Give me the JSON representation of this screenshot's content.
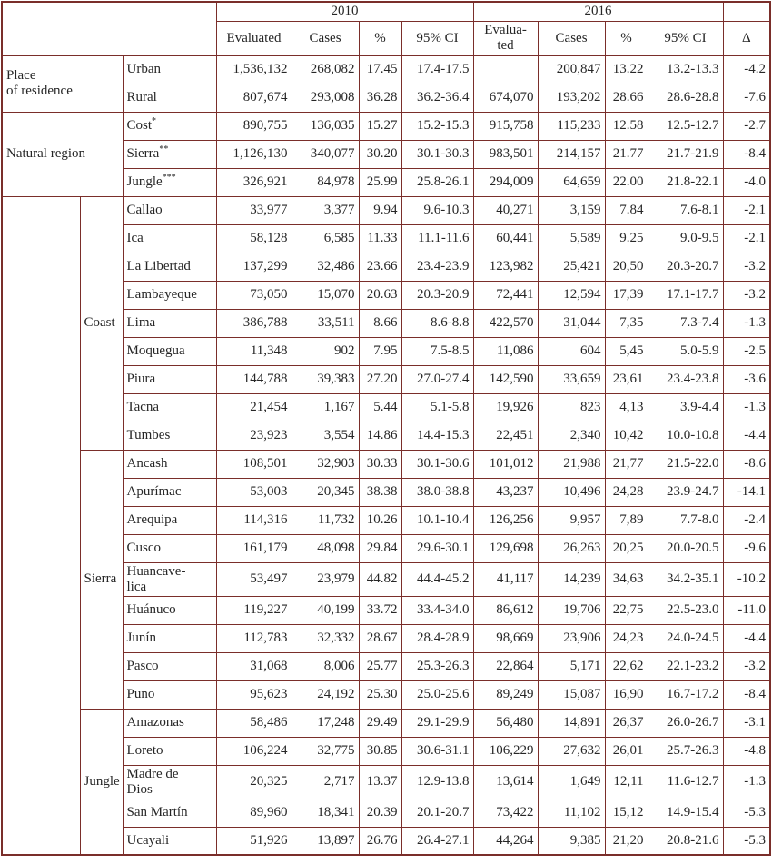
{
  "table": {
    "header": {
      "year_2010": "2010",
      "year_2016": "2016",
      "delta": "Δ",
      "subcols_2010": [
        "Evaluated",
        "Cases",
        "%",
        "95% CI"
      ],
      "subcols_2016": [
        "Evalua-\nted",
        "Cases",
        "%",
        "95% CI"
      ]
    },
    "border_color": "#7a2e2a",
    "sections": [
      {
        "label": "Place\nof residence",
        "rows": [
          {
            "name": "Urban",
            "values": [
              "1,536,132",
              "268,082",
              "17.45",
              "17.4-17.5",
              "",
              "200,847",
              "13.22",
              "13.2-13.3",
              "-4.2"
            ]
          },
          {
            "name": "Rural",
            "values": [
              "807,674",
              "293,008",
              "36.28",
              "36.2-36.4",
              "674,070",
              "193,202",
              "28.66",
              "28.6-28.8",
              "-7.6"
            ]
          }
        ]
      },
      {
        "label": "Natural region",
        "rows": [
          {
            "name": "Cost",
            "sup": "*",
            "values": [
              "890,755",
              "136,035",
              "15.27",
              "15.2-15.3",
              "915,758",
              "115,233",
              "12.58",
              "12.5-12.7",
              "-2.7"
            ]
          },
          {
            "name": "Sierra",
            "sup": "**",
            "values": [
              "1,126,130",
              "340,077",
              "30.20",
              "30.1-30.3",
              "983,501",
              "214,157",
              "21.77",
              "21.7-21.9",
              "-8.4"
            ]
          },
          {
            "name": "Jungle",
            "sup": "***",
            "values": [
              "326,921",
              "84,978",
              "25.99",
              "25.8-26.1",
              "294,009",
              "64,659",
              "22.00",
              "21.8-22.1",
              "-4.0"
            ]
          }
        ]
      },
      {
        "label": "",
        "groups": [
          {
            "name": "Coast",
            "rows": [
              {
                "name": "Callao",
                "values": [
                  "33,977",
                  "3,377",
                  "9.94",
                  "9.6-10.3",
                  "40,271",
                  "3,159",
                  "7.84",
                  "7.6-8.1",
                  "-2.1"
                ]
              },
              {
                "name": "Ica",
                "values": [
                  "58,128",
                  "6,585",
                  "11.33",
                  "11.1-11.6",
                  "60,441",
                  "5,589",
                  "9.25",
                  "9.0-9.5",
                  "-2.1"
                ]
              },
              {
                "name": "La Libertad",
                "values": [
                  "137,299",
                  "32,486",
                  "23.66",
                  "23.4-23.9",
                  "123,982",
                  "25,421",
                  "20,50",
                  "20.3-20.7",
                  "-3.2"
                ]
              },
              {
                "name": "Lambayeque",
                "values": [
                  "73,050",
                  "15,070",
                  "20.63",
                  "20.3-20.9",
                  "72,441",
                  "12,594",
                  "17,39",
                  "17.1-17.7",
                  "-3.2"
                ]
              },
              {
                "name": "Lima",
                "values": [
                  "386,788",
                  "33,511",
                  "8.66",
                  "8.6-8.8",
                  "422,570",
                  "31,044",
                  "7,35",
                  "7.3-7.4",
                  "-1.3"
                ]
              },
              {
                "name": "Moquegua",
                "values": [
                  "11,348",
                  "902",
                  "7.95",
                  "7.5-8.5",
                  "11,086",
                  "604",
                  "5,45",
                  "5.0-5.9",
                  "-2.5"
                ]
              },
              {
                "name": "Piura",
                "values": [
                  "144,788",
                  "39,383",
                  "27.20",
                  "27.0-27.4",
                  "142,590",
                  "33,659",
                  "23,61",
                  "23.4-23.8",
                  "-3.6"
                ]
              },
              {
                "name": "Tacna",
                "values": [
                  "21,454",
                  "1,167",
                  "5.44",
                  "5.1-5.8",
                  "19,926",
                  "823",
                  "4,13",
                  "3.9-4.4",
                  "-1.3"
                ]
              },
              {
                "name": "Tumbes",
                "values": [
                  "23,923",
                  "3,554",
                  "14.86",
                  "14.4-15.3",
                  "22,451",
                  "2,340",
                  "10,42",
                  "10.0-10.8",
                  "-4.4"
                ]
              }
            ]
          },
          {
            "name": "Sierra",
            "rows": [
              {
                "name": "Ancash",
                "values": [
                  "108,501",
                  "32,903",
                  "30.33",
                  "30.1-30.6",
                  "101,012",
                  "21,988",
                  "21,77",
                  "21.5-22.0",
                  "-8.6"
                ]
              },
              {
                "name": "Apurímac",
                "values": [
                  "53,003",
                  "20,345",
                  "38.38",
                  "38.0-38.8",
                  "43,237",
                  "10,496",
                  "24,28",
                  "23.9-24.7",
                  "-14.1"
                ]
              },
              {
                "name": "Arequipa",
                "values": [
                  "114,316",
                  "11,732",
                  "10.26",
                  "10.1-10.4",
                  "126,256",
                  "9,957",
                  "7,89",
                  "7.7-8.0",
                  "-2.4"
                ]
              },
              {
                "name": "Cusco",
                "values": [
                  "161,179",
                  "48,098",
                  "29.84",
                  "29.6-30.1",
                  "129,698",
                  "26,263",
                  "20,25",
                  "20.0-20.5",
                  "-9.6"
                ]
              },
              {
                "name": "Huancave-\nlica",
                "values": [
                  "53,497",
                  "23,979",
                  "44.82",
                  "44.4-45.2",
                  "41,117",
                  "14,239",
                  "34,63",
                  "34.2-35.1",
                  "-10.2"
                ]
              },
              {
                "name": "Huánuco",
                "values": [
                  "119,227",
                  "40,199",
                  "33.72",
                  "33.4-34.0",
                  "86,612",
                  "19,706",
                  "22,75",
                  "22.5-23.0",
                  "-11.0"
                ]
              },
              {
                "name": "Junín",
                "values": [
                  "112,783",
                  "32,332",
                  "28.67",
                  "28.4-28.9",
                  "98,669",
                  "23,906",
                  "24,23",
                  "24.0-24.5",
                  "-4.4"
                ]
              },
              {
                "name": "Pasco",
                "values": [
                  "31,068",
                  "8,006",
                  "25.77",
                  "25.3-26.3",
                  "22,864",
                  "5,171",
                  "22,62",
                  "22.1-23.2",
                  "-3.2"
                ]
              },
              {
                "name": "Puno",
                "values": [
                  "95,623",
                  "24,192",
                  "25.30",
                  "25.0-25.6",
                  "89,249",
                  "15,087",
                  "16,90",
                  "16.7-17.2",
                  "-8.4"
                ]
              }
            ]
          },
          {
            "name": "Jungle",
            "rows": [
              {
                "name": "Amazonas",
                "values": [
                  "58,486",
                  "17,248",
                  "29.49",
                  "29.1-29.9",
                  "56,480",
                  "14,891",
                  "26,37",
                  "26.0-26.7",
                  "-3.1"
                ]
              },
              {
                "name": "Loreto",
                "values": [
                  "106,224",
                  "32,775",
                  "30.85",
                  "30.6-31.1",
                  "106,229",
                  "27,632",
                  "26,01",
                  "25.7-26.3",
                  "-4.8"
                ]
              },
              {
                "name": "Madre de\nDios",
                "values": [
                  "20,325",
                  "2,717",
                  "13.37",
                  "12.9-13.8",
                  "13,614",
                  "1,649",
                  "12,11",
                  "11.6-12.7",
                  "-1.3"
                ]
              },
              {
                "name": "San Martín",
                "values": [
                  "89,960",
                  "18,341",
                  "20.39",
                  "20.1-20.7",
                  "73,422",
                  "11,102",
                  "15,12",
                  "14.9-15.4",
                  "-5.3"
                ]
              },
              {
                "name": "Ucayali",
                "values": [
                  "51,926",
                  "13,897",
                  "26.76",
                  "26.4-27.1",
                  "44,264",
                  "9,385",
                  "21,20",
                  "20.8-21.6",
                  "-5.3"
                ]
              }
            ]
          }
        ]
      }
    ]
  }
}
